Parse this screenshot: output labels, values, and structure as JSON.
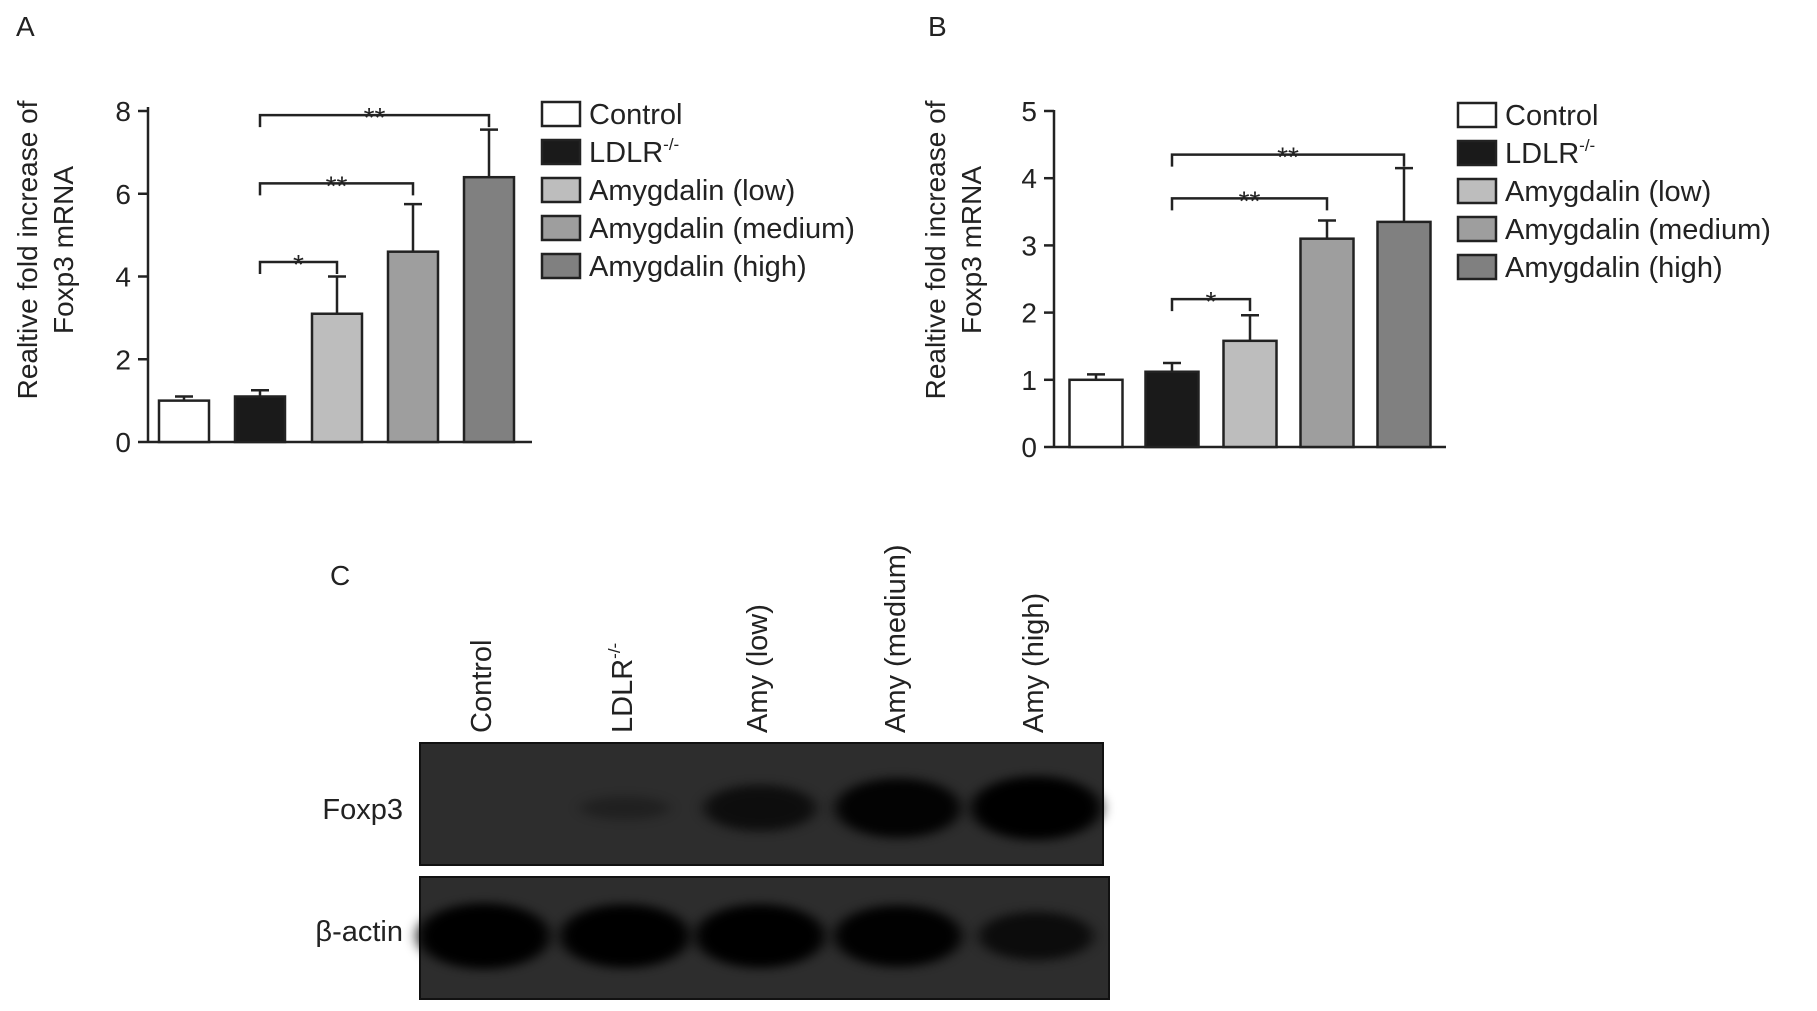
{
  "panels": {
    "a": "A",
    "b": "B",
    "c": "C"
  },
  "colors": {
    "control": "#ffffff",
    "ldlr": "#1a1a1a",
    "low": "#bdbdbd",
    "medium": "#9e9e9e",
    "high": "#808080",
    "axis": "#222222"
  },
  "chart_data": [
    {
      "type": "bar",
      "panel": "A",
      "categories": [
        "Control",
        "LDLR-/-",
        "Amygdalin (low)",
        "Amygdalin (medium)",
        "Amygdalin (high)"
      ],
      "values": [
        1.0,
        1.1,
        3.1,
        4.6,
        6.4
      ],
      "errors": [
        0.1,
        0.15,
        0.9,
        1.15,
        1.15
      ],
      "ylabel_line1": "Realtive fold increase of",
      "ylabel_line2": "Foxp3 mRNA",
      "ylim": [
        0,
        8
      ],
      "yticks": [
        0,
        2,
        4,
        6,
        8
      ],
      "legend": [
        {
          "label": "Control",
          "sup": ""
        },
        {
          "label": "LDLR",
          "sup": "-/-"
        },
        {
          "label": "Amygdalin (low)",
          "sup": ""
        },
        {
          "label": "Amygdalin (medium)",
          "sup": ""
        },
        {
          "label": "Amygdalin (high)",
          "sup": ""
        }
      ],
      "significance": [
        {
          "from": 1,
          "to": 2,
          "label": "*",
          "y": 4.35
        },
        {
          "from": 1,
          "to": 3,
          "label": "**",
          "y": 6.25
        },
        {
          "from": 1,
          "to": 4,
          "label": "**",
          "y": 7.9
        }
      ]
    },
    {
      "type": "bar",
      "panel": "B",
      "categories": [
        "Control",
        "LDLR-/-",
        "Amygdalin (low)",
        "Amygdalin (medium)",
        "Amygdalin (high)"
      ],
      "values": [
        1.0,
        1.12,
        1.58,
        3.1,
        3.35
      ],
      "errors": [
        0.08,
        0.13,
        0.38,
        0.27,
        0.8
      ],
      "ylabel_line1": "Realtive fold increase of",
      "ylabel_line2": "Foxp3 mRNA",
      "ylim": [
        0,
        5
      ],
      "yticks": [
        0,
        1,
        2,
        3,
        4,
        5
      ],
      "legend": [
        {
          "label": "Control",
          "sup": ""
        },
        {
          "label": "LDLR",
          "sup": "-/-"
        },
        {
          "label": "Amygdalin (low)",
          "sup": ""
        },
        {
          "label": "Amygdalin (medium)",
          "sup": ""
        },
        {
          "label": "Amygdalin (high)",
          "sup": ""
        }
      ],
      "significance": [
        {
          "from": 1,
          "to": 2,
          "label": "*",
          "y": 2.2
        },
        {
          "from": 1,
          "to": 3,
          "label": "**",
          "y": 3.7
        },
        {
          "from": 1,
          "to": 4,
          "label": "**",
          "y": 4.35
        }
      ]
    }
  ],
  "blot": {
    "lanes": [
      {
        "label": "Control",
        "sup": ""
      },
      {
        "label": "LDLR",
        "sup": "-/-"
      },
      {
        "label": "Amy (low)",
        "sup": ""
      },
      {
        "label": "Amy (medium)",
        "sup": ""
      },
      {
        "label": "Amy (high)",
        "sup": ""
      }
    ],
    "rows": [
      {
        "label": "Foxp3",
        "intensities": [
          0.0,
          0.03,
          0.55,
          0.85,
          0.95
        ]
      },
      {
        "label": "β-actin",
        "intensities": [
          1.0,
          0.95,
          0.95,
          0.9,
          0.6
        ]
      }
    ]
  }
}
